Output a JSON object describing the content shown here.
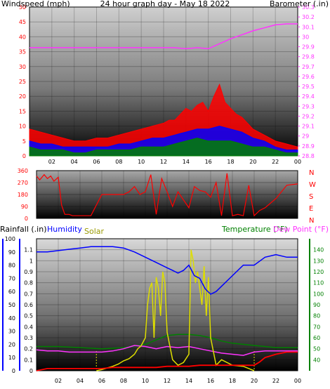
{
  "chart_data": [
    {
      "type": "line",
      "title": "24 hour graph day - May 18 2022",
      "ylabel_left": "Windspeed (mph)",
      "ylabel_right": "Barometer (.in)",
      "colors": {
        "title": "#ffff00",
        "left": "#ff0000",
        "right": "#ff33ff",
        "wind": "#ff0000",
        "gust_mid": "#0000ff",
        "wind_low": "#008000",
        "baro": "#ff33ff",
        "ticks": "#000000"
      },
      "x_ticks": [
        "02",
        "04",
        "06",
        "08",
        "10",
        "12",
        "14",
        "16",
        "18",
        "20",
        "22",
        "00"
      ],
      "y_left_ticks": [
        "0",
        "5",
        "10",
        "15",
        "20",
        "25",
        "30",
        "35",
        "40",
        "45",
        "50"
      ],
      "y_left_lim": [
        0,
        50
      ],
      "y_right_ticks": [
        "28.8",
        "28.9",
        "29",
        "29.1",
        "29.2",
        "29.3",
        "29.4",
        "29.5",
        "29.6",
        "29.7",
        "29.8",
        "29.9",
        "30",
        "30.1",
        "30.2",
        "30.3"
      ],
      "y_right_lim": [
        28.8,
        30.3
      ],
      "series": [
        {
          "key": "gust",
          "x": [
            0,
            1,
            2,
            3,
            4,
            5,
            6,
            7,
            8,
            9,
            10,
            11,
            12,
            12.5,
            13,
            13.5,
            14,
            14.5,
            15,
            15.5,
            16,
            16.5,
            17,
            17.5,
            18,
            18.5,
            19,
            19.5,
            20,
            20.5,
            21,
            22,
            23,
            24
          ],
          "values": [
            9,
            8,
            7,
            6,
            5,
            5,
            6,
            6,
            7,
            8,
            9,
            10,
            11,
            12,
            12,
            14,
            16,
            15,
            17,
            18,
            15,
            20,
            24,
            18,
            16,
            14,
            13,
            11,
            9,
            8,
            7,
            5,
            4,
            3
          ]
        },
        {
          "key": "average",
          "x": [
            0,
            1,
            2,
            3,
            4,
            5,
            6,
            7,
            8,
            9,
            10,
            11,
            12,
            13,
            14,
            15,
            16,
            17,
            18,
            19,
            20,
            21,
            22,
            23,
            24
          ],
          "values": [
            5,
            4,
            4,
            3,
            3,
            3,
            3,
            3,
            4,
            4,
            5,
            6,
            6,
            7,
            8,
            9,
            9,
            10,
            9,
            8,
            6,
            5,
            3,
            2,
            2
          ]
        },
        {
          "key": "low",
          "x": [
            0,
            1,
            2,
            3,
            4,
            5,
            6,
            7,
            8,
            9,
            10,
            11,
            12,
            13,
            14,
            15,
            16,
            17,
            18,
            19,
            20,
            21,
            22,
            23,
            24
          ],
          "values": [
            3,
            2,
            2,
            2,
            1,
            1,
            2,
            2,
            2,
            2,
            3,
            3,
            3,
            4,
            5,
            6,
            5,
            5,
            5,
            4,
            3,
            3,
            2,
            1,
            1
          ]
        },
        {
          "key": "barometer",
          "x": [
            0,
            2,
            4,
            6,
            8,
            10,
            12,
            13,
            14,
            15,
            16,
            17,
            18,
            19,
            20,
            21,
            22,
            23,
            24
          ],
          "values": [
            29.89,
            29.89,
            29.89,
            29.89,
            29.89,
            29.89,
            29.89,
            29.89,
            29.88,
            29.89,
            29.88,
            29.93,
            29.98,
            30.02,
            30.06,
            30.09,
            30.12,
            30.13,
            30.13
          ]
        }
      ]
    },
    {
      "type": "scatter",
      "ylabel_right_letters": [
        "N",
        "W",
        "S",
        "E",
        "N"
      ],
      "colors": {
        "left": "#ff0000",
        "right": "#ff0000",
        "line": "#ff0000"
      },
      "y_left_ticks": [
        "0",
        "90",
        "180",
        "270",
        "360"
      ],
      "y_lim": [
        0,
        360
      ],
      "series": [
        {
          "key": "wind_direction",
          "x": [
            0,
            0.3,
            0.7,
            1,
            1.3,
            1.6,
            2,
            2.3,
            2.6,
            3,
            3.3,
            3.6,
            4,
            5,
            6,
            6.5,
            7,
            8,
            8.5,
            9,
            9.5,
            10,
            10.5,
            11,
            11.5,
            12,
            12.5,
            13,
            14,
            14.5,
            15,
            15.5,
            16,
            16.5,
            17,
            17.5,
            18,
            18.5,
            19,
            19.5,
            20,
            20.5,
            21,
            22,
            23,
            24
          ],
          "values": [
            320,
            290,
            330,
            300,
            320,
            280,
            310,
            100,
            30,
            30,
            20,
            20,
            20,
            20,
            180,
            180,
            180,
            180,
            200,
            240,
            180,
            200,
            330,
            30,
            300,
            200,
            90,
            200,
            80,
            240,
            210,
            200,
            160,
            270,
            20,
            340,
            20,
            30,
            20,
            250,
            20,
            60,
            80,
            150,
            250,
            260
          ]
        }
      ]
    },
    {
      "type": "line",
      "ylabel_left_1": "Rainfall (.in)",
      "ylabel_left_2": "Humidity",
      "ylabel_left_3": "Solar",
      "ylabel_right_1": "Temperature (°F)",
      "ylabel_right_2": "Dew Point (°F)",
      "colors": {
        "rainfall": "#ff0000",
        "humidity": "#0000ff",
        "solar": "#dddd00",
        "temp": "#008000",
        "dewpoint": "#ff33ff",
        "rain_axis": "#0000ff",
        "humid_axis": "#0000ff",
        "temp_axis": "#008000"
      },
      "x_ticks": [
        "02",
        "04",
        "06",
        "08",
        "10",
        "12",
        "14",
        "16",
        "18",
        "20",
        "22",
        "00"
      ],
      "y_rain_ticks": [
        "0",
        "0.1",
        "0.2",
        "0.3",
        "0.4",
        "0.5",
        "0.6",
        "0.7",
        "0.8",
        "0.9",
        "1",
        "1.1"
      ],
      "y_rain_lim": [
        0,
        1.2
      ],
      "y_humid_ticks": [
        "0",
        "10",
        "20",
        "30",
        "40",
        "50",
        "60",
        "70",
        "80",
        "90",
        "100"
      ],
      "y_humid_lim": [
        0,
        100
      ],
      "y_temp_ticks": [
        "40",
        "50",
        "60",
        "70",
        "80",
        "90",
        "100",
        "110",
        "120",
        "130",
        "140"
      ],
      "y_temp_lim": [
        30,
        150
      ],
      "series": [
        {
          "key": "humidity",
          "x": [
            0,
            1,
            2,
            3,
            4,
            5,
            6,
            7,
            8,
            9,
            10,
            11,
            12,
            12.5,
            13,
            13.5,
            14,
            14.5,
            15,
            15.5,
            16,
            16.5,
            17,
            18,
            19,
            20,
            21,
            22,
            23,
            24
          ],
          "values": [
            90,
            90,
            91,
            92,
            93,
            94,
            94,
            94,
            93,
            90,
            86,
            82,
            78,
            76,
            74,
            76,
            80,
            72,
            70,
            62,
            58,
            60,
            64,
            72,
            80,
            80,
            86,
            88,
            86,
            86
          ]
        },
        {
          "key": "rainfall",
          "x": [
            0,
            1,
            2,
            3,
            4,
            5,
            6,
            7,
            8,
            9,
            10,
            11,
            12,
            13,
            14,
            15,
            16,
            17,
            18,
            19,
            20,
            20.5,
            21,
            22,
            23,
            24
          ],
          "values": [
            0,
            0.02,
            0.02,
            0.02,
            0.02,
            0.02,
            0.02,
            0.03,
            0.03,
            0.03,
            0.03,
            0.03,
            0.04,
            0.04,
            0.04,
            0.05,
            0.05,
            0.05,
            0.05,
            0.05,
            0.05,
            0.08,
            0.12,
            0.15,
            0.17,
            0.17
          ]
        },
        {
          "key": "temperature",
          "x": [
            0,
            2,
            4,
            6,
            8,
            10,
            11,
            12,
            13,
            14,
            15,
            16,
            17,
            18,
            19,
            20,
            21,
            22,
            23,
            24
          ],
          "values": [
            52,
            52,
            51,
            50,
            51,
            54,
            58,
            62,
            63,
            63,
            62,
            60,
            57,
            55,
            54,
            53,
            52,
            51,
            51,
            51
          ]
        },
        {
          "key": "dewpoint",
          "x": [
            0,
            1,
            2,
            3,
            4,
            5,
            6,
            7,
            8,
            9,
            10,
            11,
            12,
            13,
            14,
            15,
            16,
            17,
            18,
            19,
            20,
            21,
            22,
            23,
            24
          ],
          "values": [
            49,
            48,
            48,
            47,
            47,
            47,
            47,
            48,
            50,
            53,
            52,
            50,
            52,
            51,
            52,
            50,
            48,
            46,
            45,
            44,
            47,
            48,
            48,
            48,
            48
          ]
        },
        {
          "key": "solar",
          "x": [
            5.5,
            6,
            7,
            7.5,
            8,
            8.5,
            9,
            9.3,
            9.6,
            10,
            10.2,
            10.4,
            10.6,
            10.8,
            11,
            11.2,
            11.4,
            11.6,
            11.8,
            12,
            12.5,
            13,
            13.5,
            14,
            14.2,
            14.4,
            14.6,
            14.8,
            15,
            15.2,
            15.4,
            15.6,
            15.8,
            16,
            16.5,
            17,
            18,
            19,
            20
          ],
          "values": [
            0,
            2,
            8,
            12,
            18,
            22,
            30,
            40,
            45,
            60,
            120,
            150,
            160,
            60,
            170,
            150,
            100,
            180,
            160,
            70,
            20,
            10,
            15,
            30,
            220,
            200,
            160,
            180,
            150,
            120,
            190,
            100,
            170,
            60,
            10,
            20,
            10,
            8,
            0
          ]
        }
      ]
    }
  ]
}
